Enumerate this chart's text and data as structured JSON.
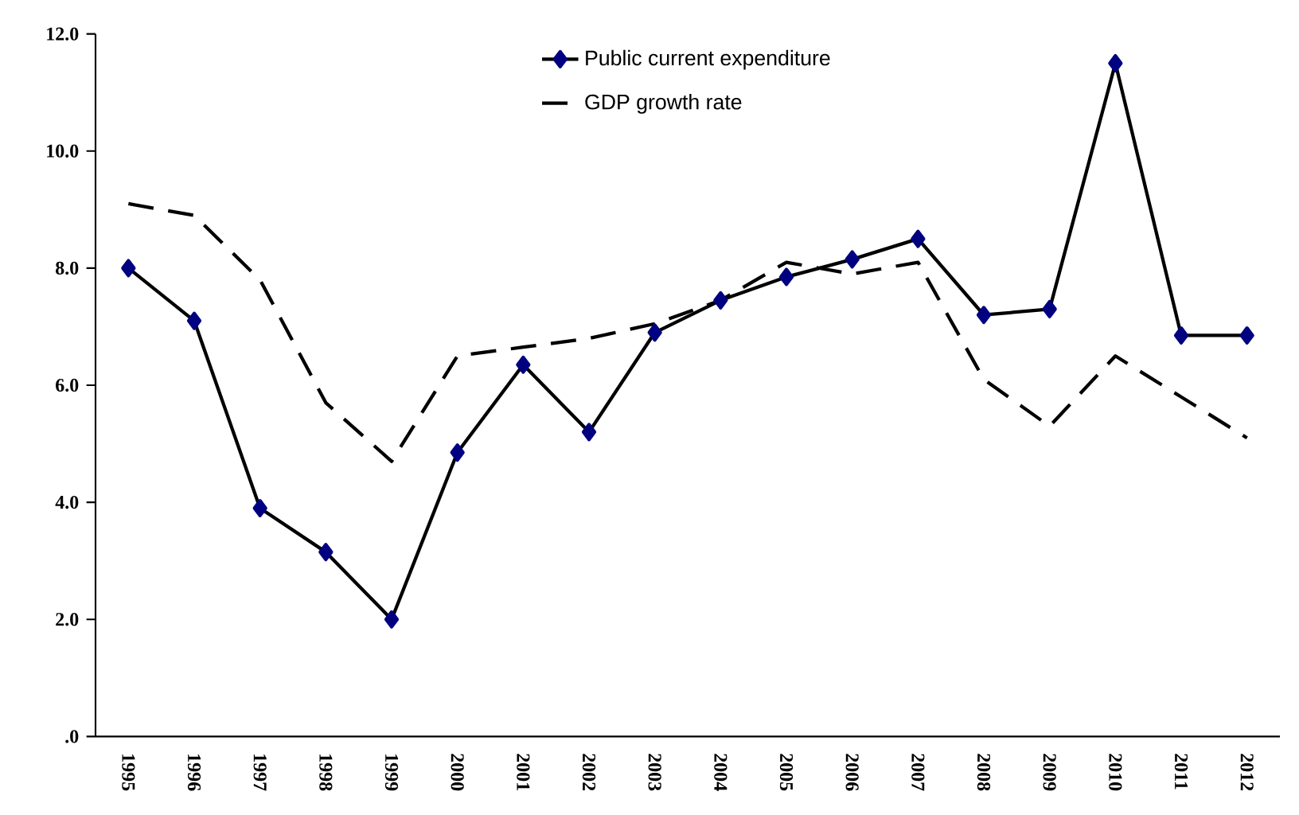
{
  "chart_data": {
    "type": "line",
    "categories": [
      "1995",
      "1996",
      "1997",
      "1998",
      "1999",
      "2000",
      "2001",
      "2002",
      "2003",
      "2004",
      "2005",
      "2006",
      "2007",
      "2008",
      "2009",
      "2010",
      "2011",
      "2012"
    ],
    "series": [
      {
        "name": "Public current expenditure",
        "color": "#000000",
        "marker": "diamond",
        "line_style": "solid",
        "values": [
          8.0,
          7.1,
          3.9,
          3.15,
          2.0,
          4.85,
          6.35,
          5.2,
          6.9,
          7.45,
          7.85,
          8.15,
          8.5,
          7.2,
          7.3,
          11.5,
          6.85,
          6.85
        ]
      },
      {
        "name": "GDP growth rate",
        "color": "#000000",
        "marker": "none",
        "line_style": "dashed",
        "values": [
          9.1,
          8.9,
          7.8,
          5.7,
          4.7,
          6.5,
          6.65,
          6.8,
          7.05,
          7.45,
          8.1,
          7.9,
          8.1,
          6.1,
          5.3,
          6.5,
          5.8,
          5.1
        ]
      }
    ],
    "ylim": [
      0,
      12
    ],
    "yticks": [
      {
        "value": 0,
        "label": ".0"
      },
      {
        "value": 2,
        "label": "2.0"
      },
      {
        "value": 4,
        "label": "4.0"
      },
      {
        "value": 6,
        "label": "6.0"
      },
      {
        "value": 8,
        "label": "8.0"
      },
      {
        "value": 10,
        "label": "10.0"
      },
      {
        "value": 12,
        "label": "12.0"
      }
    ],
    "legend": "top",
    "grid": false
  }
}
